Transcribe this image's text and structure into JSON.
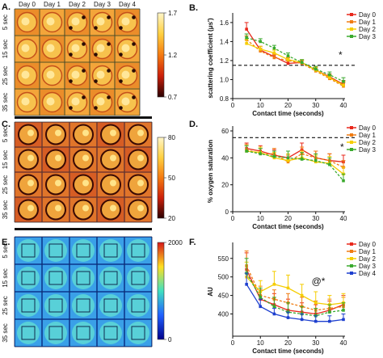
{
  "panels": {
    "A": {
      "letter": "A.",
      "days": [
        "Day 0",
        "Day 1",
        "Day 2",
        "Day 3",
        "Day 4"
      ],
      "rows": [
        "5 sec",
        "15 sec",
        "25 sec",
        "35 sec"
      ],
      "colorbar": {
        "ticks": [
          "1.7",
          "1.2",
          "0.7"
        ],
        "colors": [
          "#fff6c8",
          "#ffd040",
          "#f57a10",
          "#cc1f0a",
          "#2a0000"
        ]
      }
    },
    "C": {
      "letter": "C.",
      "rows": [
        "5 sec",
        "15 sec",
        "25 sec",
        "35 sec"
      ],
      "colorbar": {
        "ticks": [
          "80",
          "50",
          "20"
        ],
        "colors": [
          "#fff6c8",
          "#ffd040",
          "#f57a10",
          "#cc1f0a",
          "#2a0000"
        ]
      }
    },
    "E": {
      "letter": "E.",
      "rows": [
        "5 sec",
        "15 sec",
        "25 sec",
        "35 sec"
      ],
      "colorbar": {
        "ticks": [
          "2000",
          "0"
        ],
        "colors": [
          "#d61818",
          "#ffdf20",
          "#40e0c0",
          "#2060ff",
          "#00008a"
        ]
      }
    }
  },
  "chart_data": [
    {
      "id": "B",
      "letter": "B.",
      "type": "line",
      "ylabel": "scattering coefficient (μs')",
      "xlabel": "Contact time (seconds)",
      "x": [
        5,
        10,
        15,
        20,
        25,
        30,
        35,
        40
      ],
      "xlim": [
        0,
        40
      ],
      "ylim": [
        0.8,
        1.65
      ],
      "xticks": [
        0,
        10,
        20,
        30,
        40
      ],
      "yticks": [
        0.8,
        1.0,
        1.2,
        1.4,
        1.6
      ],
      "yticklabels": [
        "0.8",
        "1.0",
        "1.2",
        "1.4",
        "1.6"
      ],
      "threshold": 1.15,
      "annotation": "*",
      "series": [
        {
          "name": "Day 0",
          "color": "#e8281c",
          "values": [
            1.53,
            1.31,
            1.24,
            1.17,
            1.18,
            1.1,
            1.03,
            0.95
          ],
          "err": [
            0.07,
            0.04,
            0.03,
            0.03,
            0.02,
            0.03,
            0.03,
            0.04
          ]
        },
        {
          "name": "Day 1",
          "color": "#f07c12",
          "values": [
            1.42,
            1.3,
            1.23,
            1.2,
            1.17,
            1.09,
            1.01,
            0.93
          ],
          "err": [
            0.04,
            0.03,
            0.03,
            0.03,
            0.03,
            0.03,
            0.03,
            0.04
          ]
        },
        {
          "name": "Day 2",
          "color": "#f5cd00",
          "values": [
            1.38,
            1.32,
            1.28,
            1.21,
            1.18,
            1.1,
            1.02,
            0.94
          ],
          "err": [
            0.04,
            0.03,
            0.03,
            0.03,
            0.03,
            0.03,
            0.03,
            0.04
          ]
        },
        {
          "name": "Day 3",
          "color": "#3aaa2e",
          "values": [
            1.44,
            1.4,
            1.33,
            1.25,
            1.18,
            1.11,
            1.05,
            0.98
          ],
          "err": [
            0.04,
            0.03,
            0.03,
            0.03,
            0.03,
            0.03,
            0.03,
            0.04
          ]
        }
      ]
    },
    {
      "id": "D",
      "letter": "D.",
      "type": "line",
      "ylabel": "% oxygen saturation",
      "xlabel": "Contact time (seconds)",
      "x": [
        5,
        10,
        15,
        20,
        25,
        30,
        35,
        40
      ],
      "xlim": [
        0,
        40
      ],
      "ylim": [
        0,
        60
      ],
      "xticks": [
        0,
        10,
        20,
        30,
        40
      ],
      "yticks": [
        0,
        20,
        40,
        60
      ],
      "yticklabels": [
        "0",
        "20",
        "40",
        "60"
      ],
      "threshold": 55,
      "annotation": "*",
      "series": [
        {
          "name": "Day 0",
          "color": "#e8281c",
          "values": [
            47,
            45,
            42,
            40,
            46,
            40,
            38,
            37
          ],
          "err": [
            4,
            4,
            4,
            5,
            5,
            5,
            5,
            5
          ]
        },
        {
          "name": "Day 1",
          "color": "#f07c12",
          "values": [
            46,
            43,
            43,
            37,
            43,
            40,
            38,
            33
          ],
          "err": [
            4,
            4,
            4,
            5,
            5,
            5,
            5,
            5
          ]
        },
        {
          "name": "Day 2",
          "color": "#f5cd00",
          "values": [
            45,
            44,
            40,
            38,
            40,
            37,
            36,
            28
          ],
          "err": [
            4,
            4,
            4,
            5,
            5,
            5,
            5,
            5
          ]
        },
        {
          "name": "Day 3",
          "color": "#3aaa2e",
          "values": [
            45,
            43,
            41,
            40,
            39,
            38,
            35,
            23
          ],
          "err": [
            4,
            4,
            4,
            5,
            5,
            5,
            5,
            5
          ]
        }
      ]
    },
    {
      "id": "F",
      "letter": "F.",
      "type": "line",
      "ylabel": "AU",
      "xlabel": "Contact time (seconds)",
      "x": [
        5,
        10,
        15,
        20,
        25,
        30,
        35,
        40
      ],
      "xlim": [
        0,
        40
      ],
      "ylim": [
        340,
        580
      ],
      "xticks": [
        0,
        10,
        20,
        30,
        40
      ],
      "yticks": [
        400,
        450,
        500,
        550
      ],
      "yticklabels": [
        "400",
        "450",
        "500",
        "550"
      ],
      "annotation": "@*",
      "series": [
        {
          "name": "Day 0",
          "color": "#e8281c",
          "values": [
            520,
            440,
            425,
            410,
            405,
            400,
            410,
            425
          ],
          "err": [
            45,
            25,
            30,
            30,
            25,
            25,
            25,
            25
          ]
        },
        {
          "name": "Day 1",
          "color": "#f07c12",
          "values": [
            530,
            450,
            440,
            430,
            420,
            410,
            415,
            420
          ],
          "err": [
            40,
            25,
            25,
            25,
            25,
            25,
            25,
            25
          ]
        },
        {
          "name": "Day 2",
          "color": "#f5cd00",
          "values": [
            500,
            460,
            480,
            470,
            450,
            430,
            425,
            430
          ],
          "err": [
            40,
            30,
            35,
            35,
            30,
            30,
            25,
            25
          ]
        },
        {
          "name": "Day 3",
          "color": "#3aaa2e",
          "values": [
            510,
            445,
            420,
            405,
            400,
            395,
            405,
            410
          ],
          "err": [
            40,
            25,
            25,
            25,
            20,
            20,
            20,
            20
          ]
        },
        {
          "name": "Day 4",
          "color": "#1d3fcf",
          "values": [
            480,
            420,
            400,
            390,
            385,
            380,
            380,
            385
          ],
          "err": [
            30,
            20,
            15,
            15,
            15,
            15,
            15,
            15
          ]
        }
      ]
    }
  ]
}
